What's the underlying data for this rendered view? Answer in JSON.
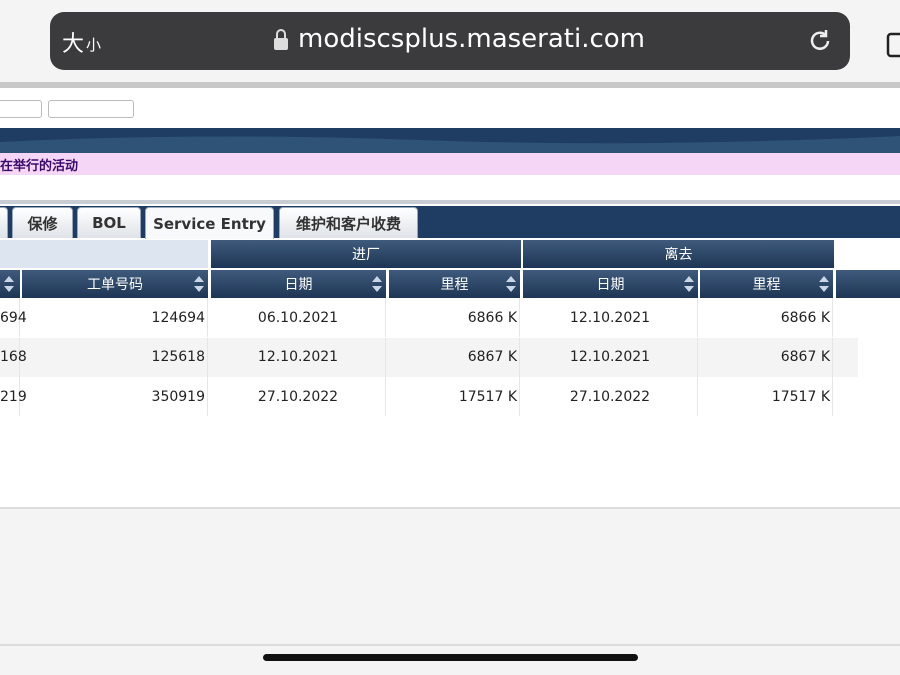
{
  "browser": {
    "text_size": [
      "大",
      "小"
    ],
    "url": "modiscsplus.maserati.com"
  },
  "banner": {
    "text": "在举行的活动"
  },
  "tabs": [
    "保修",
    "BOL",
    "Service Entry",
    "维护和客户收费"
  ],
  "table": {
    "group_headers": [
      "进厂",
      "离去"
    ],
    "columns": [
      "工单号码",
      "日期",
      "里程",
      "日期",
      "里程"
    ],
    "rows": [
      [
        "694",
        "124694",
        "06.10.2021",
        "6866 K",
        "12.10.2021",
        "6866 K"
      ],
      [
        "168",
        "125618",
        "12.10.2021",
        "6867 K",
        "12.10.2021",
        "6867 K"
      ],
      [
        "219",
        "350919",
        "27.10.2022",
        "17517 K",
        "27.10.2022",
        "17517 K"
      ]
    ]
  }
}
